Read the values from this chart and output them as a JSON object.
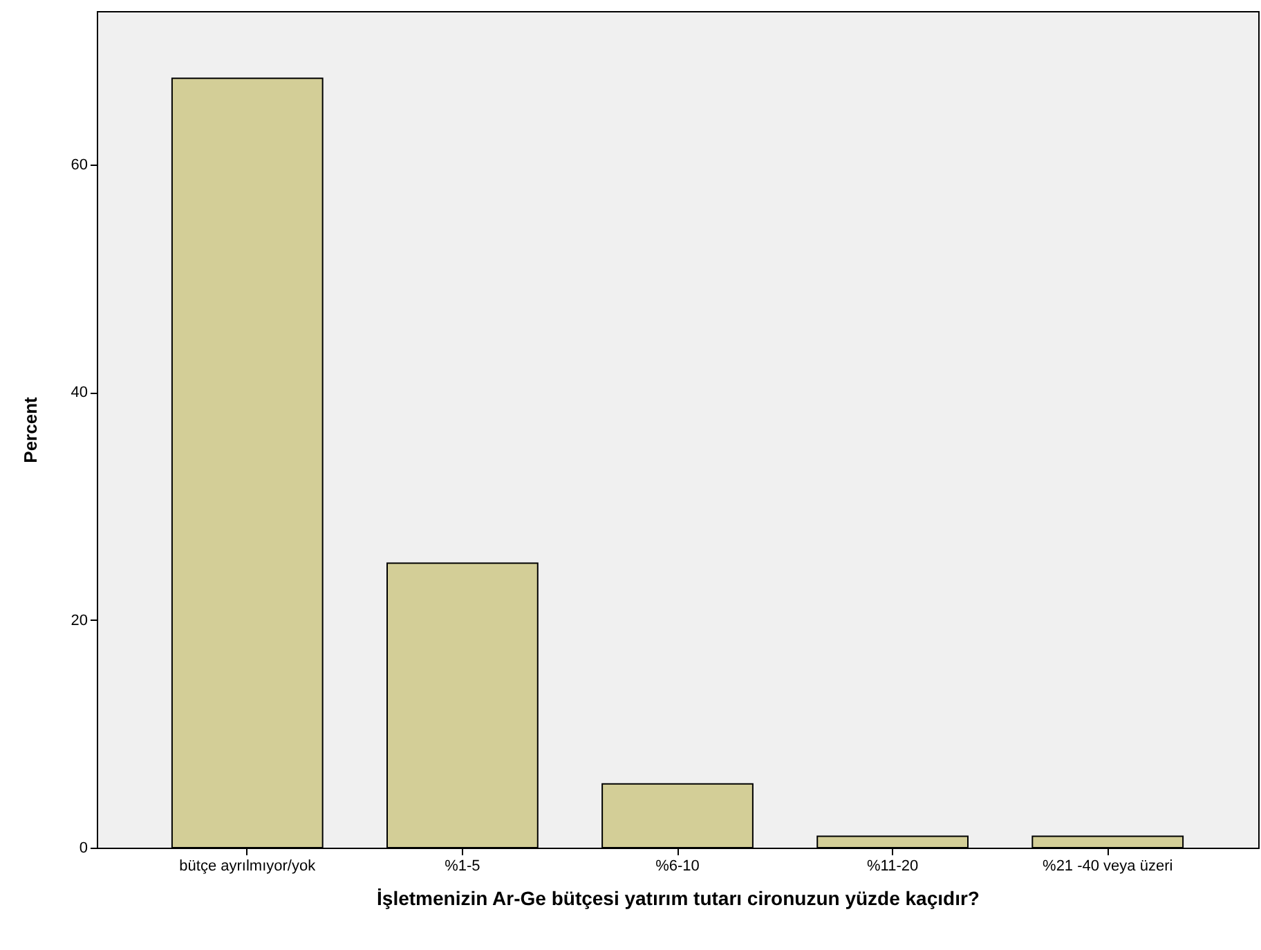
{
  "chart_data": {
    "type": "bar",
    "xlabel": "İşletmenizin Ar-Ge bütçesi yatırım tutarı cironuzun yüzde kaçıdır?",
    "ylabel": "Percent",
    "categories": [
      "bütçe ayrılmıyor/yok",
      "%1-5",
      "%6-10",
      "%11-20",
      "%21 -40 veya üzeri"
    ],
    "values": [
      67.6,
      25.0,
      5.6,
      1.0,
      1.0
    ],
    "color": "#d3ce97",
    "ylim": [
      0,
      73.5
    ],
    "yticks": [
      0,
      20,
      40,
      60
    ],
    "grid": false
  }
}
